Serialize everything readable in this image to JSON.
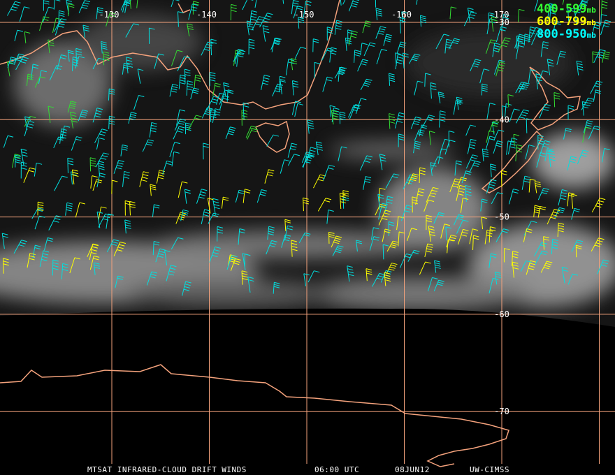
{
  "map": {
    "longitude_labels": [
      "-130",
      "-140",
      "-150",
      "-160",
      "-170"
    ],
    "latitude_labels": [
      "-30",
      "-40",
      "-50",
      "-60",
      "-70"
    ],
    "legend": [
      {
        "range": "400-599",
        "unit": "mb"
      },
      {
        "range": "600-799",
        "unit": "mb"
      },
      {
        "range": "800-950",
        "unit": "mb"
      }
    ],
    "footer": [
      "MTSAT INFRARED-CLOUD DRIFT WINDS",
      "06:00 UTC",
      "08JUN12",
      "UW-CIMSS"
    ]
  }
}
